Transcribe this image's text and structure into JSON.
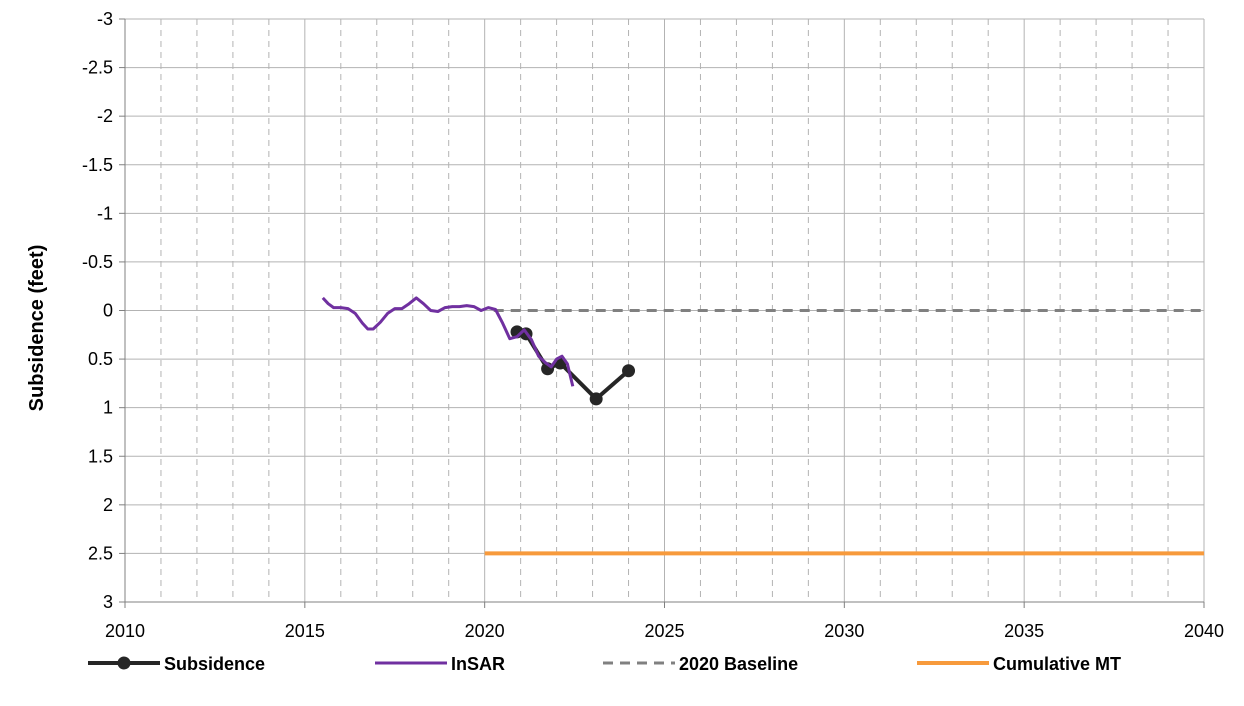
{
  "chart_data": {
    "type": "line",
    "title": "",
    "xlabel": "",
    "ylabel": "Subsidence (feet)",
    "xlim": [
      2010,
      2040
    ],
    "ylim": [
      -3,
      3
    ],
    "y_reversed": true,
    "x_ticks": [
      2010,
      2015,
      2020,
      2025,
      2030,
      2035,
      2040
    ],
    "x_tick_labels": [
      "2010",
      "2015",
      "2020",
      "2025",
      "2030",
      "2035",
      "2040"
    ],
    "y_ticks": [
      -3,
      -2.5,
      -2,
      -1.5,
      -1,
      -0.5,
      0,
      0.5,
      1,
      1.5,
      2,
      2.5,
      3
    ],
    "y_tick_labels": [
      "-3",
      "-2.5",
      "-2",
      "-1.5",
      "-1",
      "-0.5",
      "0",
      "0.5",
      "1",
      "1.5",
      "2",
      "2.5",
      "3"
    ],
    "major_grid_x": "solid",
    "minor_grid_x": "dashed",
    "grid_y": "solid",
    "legend_position": "bottom",
    "series": [
      {
        "name": "Subsidence",
        "color": "#262626",
        "style": "solid-markers",
        "points": [
          [
            2020.9,
            0.22
          ],
          [
            2021.15,
            0.24
          ],
          [
            2021.75,
            0.6
          ],
          [
            2022.1,
            0.54
          ],
          [
            2023.1,
            0.91
          ],
          [
            2024.0,
            0.62
          ]
        ]
      },
      {
        "name": "InSAR",
        "color": "#7030a0",
        "style": "solid",
        "points": [
          [
            2015.5,
            -0.13
          ],
          [
            2015.65,
            -0.07
          ],
          [
            2015.8,
            -0.03
          ],
          [
            2016.0,
            -0.03
          ],
          [
            2016.2,
            -0.02
          ],
          [
            2016.4,
            0.03
          ],
          [
            2016.6,
            0.13
          ],
          [
            2016.75,
            0.19
          ],
          [
            2016.9,
            0.19
          ],
          [
            2017.1,
            0.12
          ],
          [
            2017.3,
            0.03
          ],
          [
            2017.5,
            -0.02
          ],
          [
            2017.7,
            -0.02
          ],
          [
            2017.9,
            -0.07
          ],
          [
            2018.1,
            -0.13
          ],
          [
            2018.3,
            -0.07
          ],
          [
            2018.5,
            0.0
          ],
          [
            2018.7,
            0.01
          ],
          [
            2018.9,
            -0.03
          ],
          [
            2019.1,
            -0.04
          ],
          [
            2019.3,
            -0.04
          ],
          [
            2019.5,
            -0.05
          ],
          [
            2019.7,
            -0.04
          ],
          [
            2019.9,
            0.0
          ],
          [
            2020.1,
            -0.03
          ],
          [
            2020.3,
            -0.01
          ],
          [
            2020.5,
            0.13
          ],
          [
            2020.7,
            0.29
          ],
          [
            2020.9,
            0.27
          ],
          [
            2021.1,
            0.2
          ],
          [
            2021.3,
            0.3
          ],
          [
            2021.5,
            0.47
          ],
          [
            2021.7,
            0.54
          ],
          [
            2021.85,
            0.58
          ],
          [
            2022.0,
            0.5
          ],
          [
            2022.15,
            0.47
          ],
          [
            2022.3,
            0.55
          ],
          [
            2022.45,
            0.78
          ]
        ]
      },
      {
        "name": "2020 Baseline",
        "color": "#808080",
        "style": "dashed",
        "points": [
          [
            2020.25,
            0.0
          ],
          [
            2040.0,
            0.0
          ]
        ]
      },
      {
        "name": "Cumulative MT",
        "color": "#f79a3c",
        "style": "solid-thick",
        "points": [
          [
            2020.0,
            2.5
          ],
          [
            2040.0,
            2.5
          ]
        ]
      }
    ]
  }
}
